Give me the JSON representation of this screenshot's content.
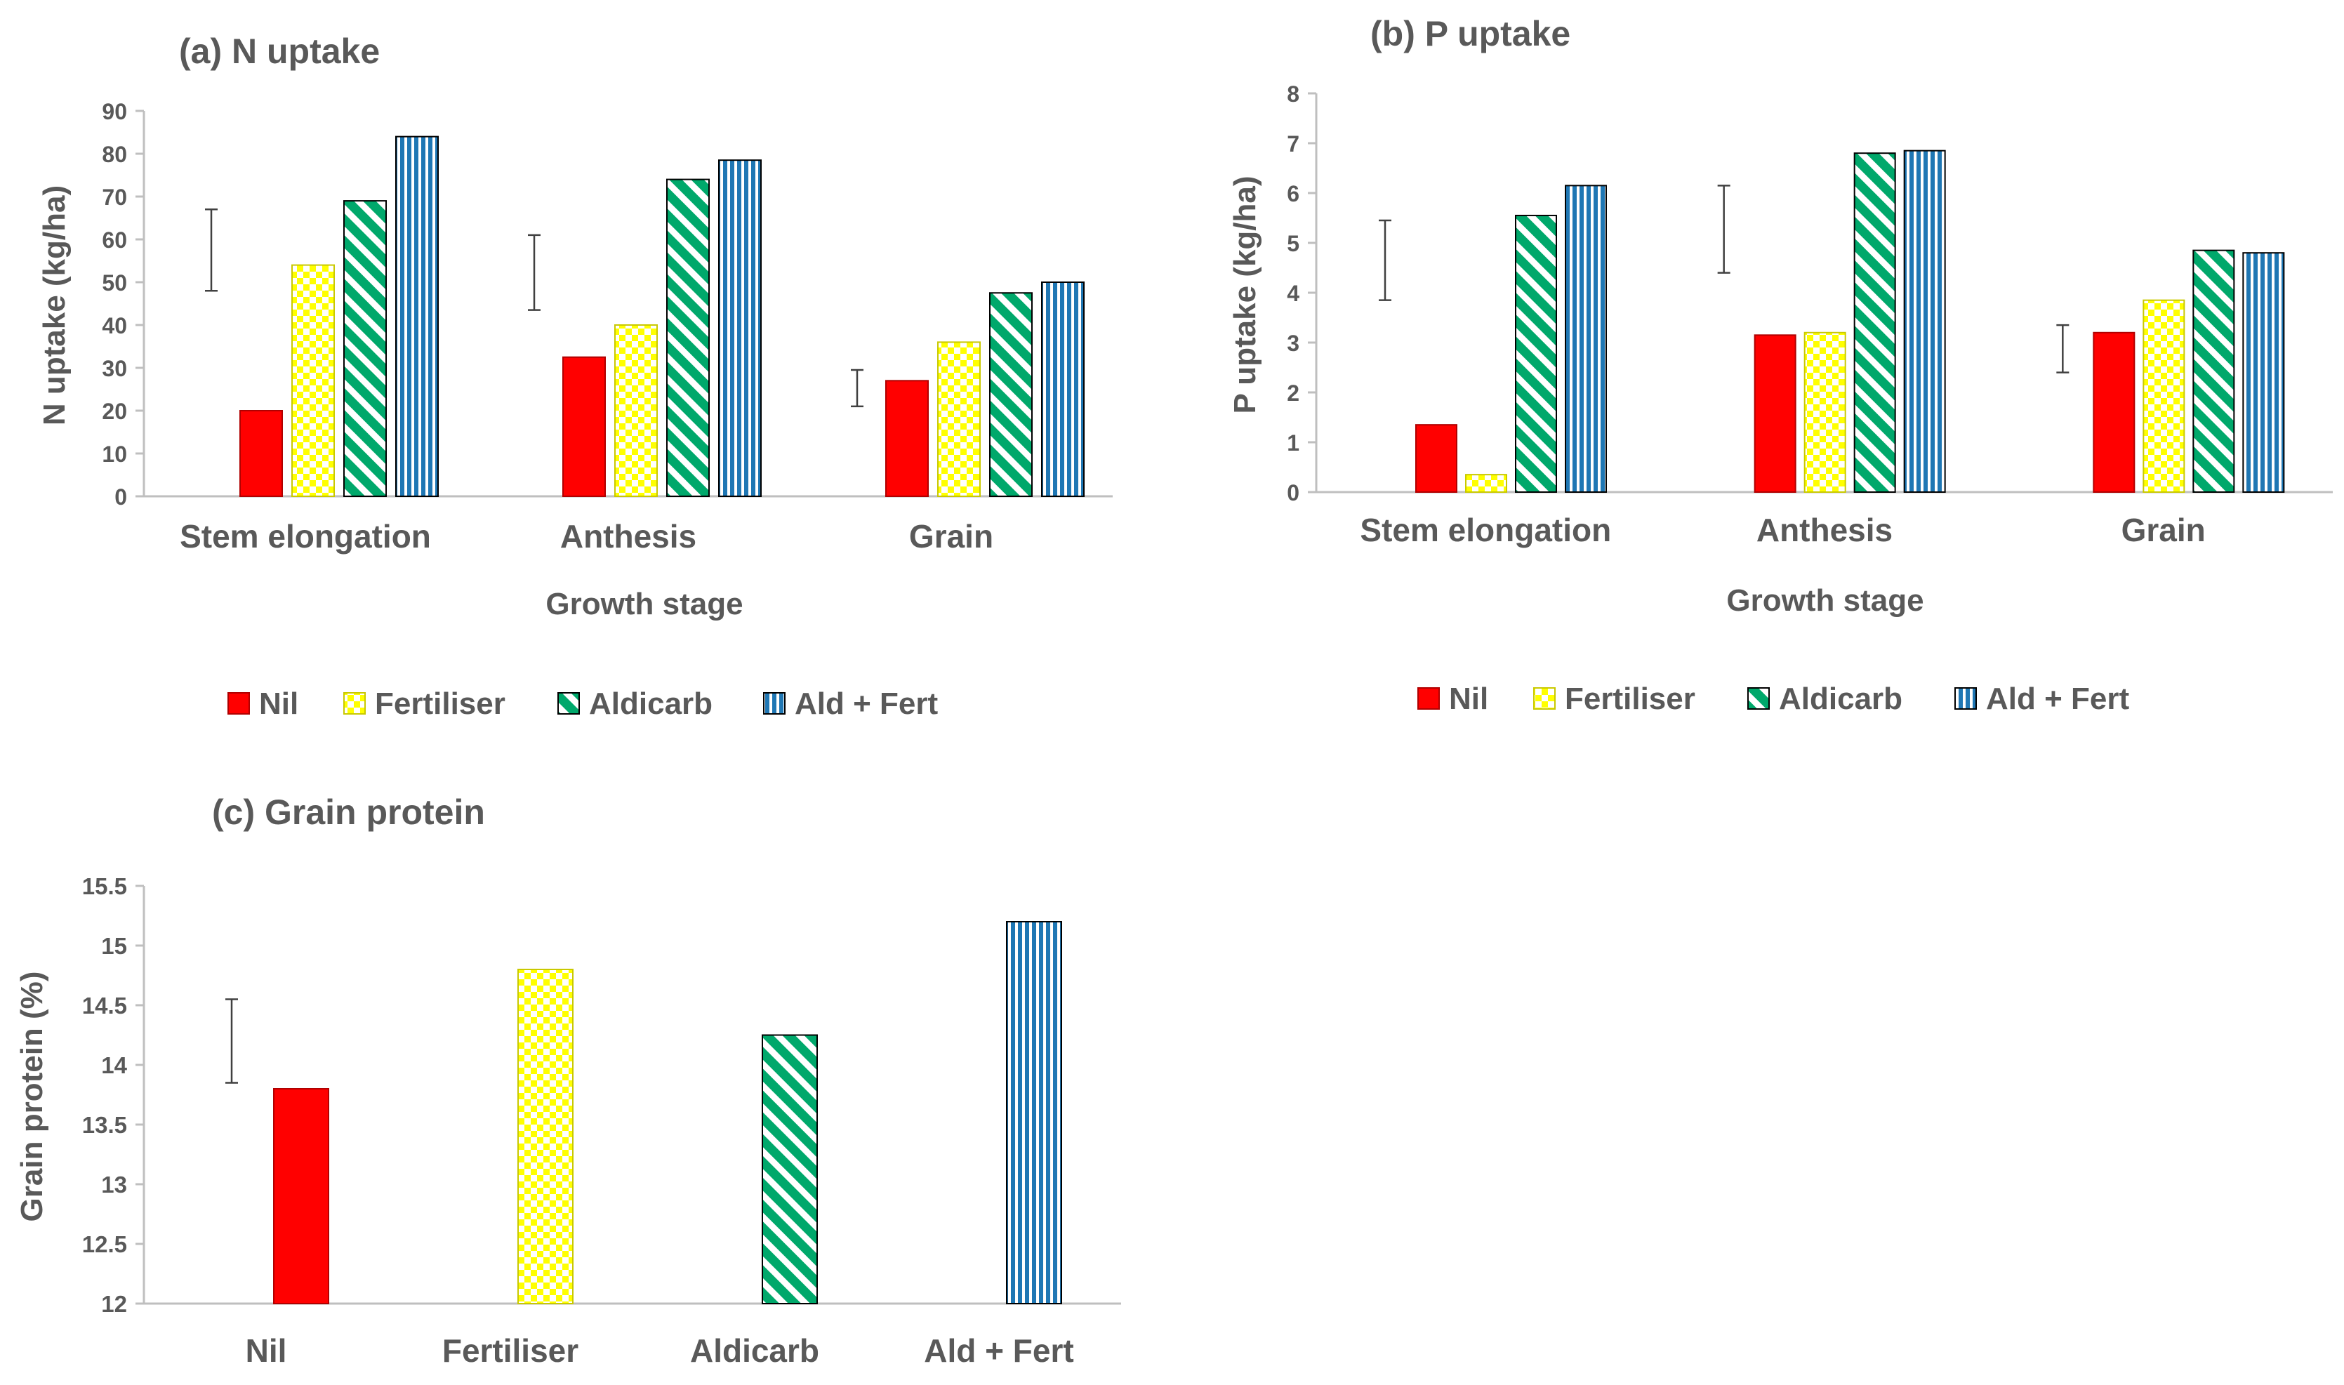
{
  "colors": {
    "nil": "#ff0000",
    "fertiliser_fill": "#ffff00",
    "fertiliser_check": "#ffffff",
    "aldicarb_fill": "#00a86b",
    "aldicarb_stripe": "#ffffff",
    "aldfert_fill": "#1f77b4",
    "aldfert_stripe": "#ffffff",
    "axis": "#bfbfbf",
    "text": "#595959",
    "errorbar": "#404040"
  },
  "chart_data": [
    {
      "type": "bar",
      "title": "(a) N uptake",
      "xlabel": "Growth stage",
      "ylabel": "N uptake (kg/ha)",
      "ylim": [
        0,
        90
      ],
      "yticks": [
        "0",
        "10",
        "20",
        "30",
        "40",
        "50",
        "60",
        "70",
        "80",
        "90"
      ],
      "categories": [
        "Stem elongation",
        "Anthesis",
        "Grain"
      ],
      "series": [
        {
          "name": "Nil",
          "values": [
            20,
            32.5,
            27
          ]
        },
        {
          "name": "Fertiliser",
          "values": [
            54,
            40,
            36
          ]
        },
        {
          "name": "Aldicarb",
          "values": [
            69,
            74,
            47.5
          ]
        },
        {
          "name": "Ald + Fert",
          "values": [
            84,
            78.5,
            50
          ]
        }
      ],
      "error_bars": [
        {
          "low": 48,
          "high": 67
        },
        {
          "low": 43.5,
          "high": 61
        },
        {
          "low": 21,
          "high": 29.5
        }
      ],
      "legend": [
        "Nil",
        "Fertiliser",
        "Aldicarb",
        "Ald + Fert"
      ],
      "legend_position": "bottom"
    },
    {
      "type": "bar",
      "title": "(b) P uptake",
      "xlabel": "Growth stage",
      "ylabel": "P uptake (kg/ha)",
      "ylim": [
        0,
        8
      ],
      "yticks": [
        "0",
        "1",
        "2",
        "3",
        "4",
        "5",
        "6",
        "7",
        "8"
      ],
      "categories": [
        "Stem elongation",
        "Anthesis",
        "Grain"
      ],
      "series": [
        {
          "name": "Nil",
          "values": [
            1.35,
            3.15,
            3.2
          ]
        },
        {
          "name": "Fertiliser",
          "values": [
            0.35,
            3.2,
            3.85
          ]
        },
        {
          "name": "Aldicarb",
          "values": [
            5.55,
            6.8,
            4.85
          ]
        },
        {
          "name": "Ald + Fert",
          "values": [
            6.15,
            6.85,
            4.8
          ]
        }
      ],
      "error_bars": [
        {
          "low": 3.85,
          "high": 5.45
        },
        {
          "low": 4.4,
          "high": 6.15
        },
        {
          "low": 2.4,
          "high": 3.35
        }
      ],
      "legend": [
        "Nil",
        "Fertiliser",
        "Aldicarb",
        "Ald + Fert"
      ],
      "legend_position": "bottom"
    },
    {
      "type": "bar",
      "title": "(c) Grain protein",
      "xlabel": "",
      "ylabel": "Grain protein (%)",
      "ylim": [
        12,
        15.5
      ],
      "yticks": [
        "12",
        "12.5",
        "13",
        "13.5",
        "14",
        "14.5",
        "15",
        "15.5"
      ],
      "categories": [
        "Nil",
        "Fertiliser",
        "Aldicarb",
        "Ald + Fert"
      ],
      "values": [
        13.8,
        14.8,
        14.25,
        15.2
      ],
      "error_bars": [
        {
          "low": 13.85,
          "high": 14.55
        }
      ]
    }
  ]
}
